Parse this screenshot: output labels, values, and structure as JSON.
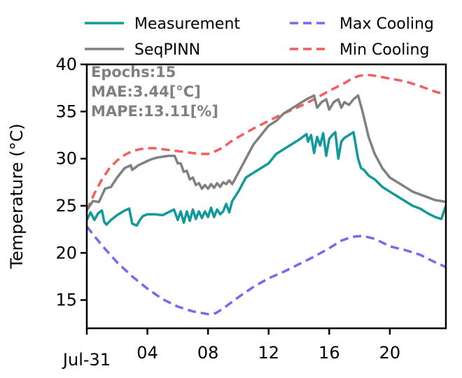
{
  "chart_data": {
    "type": "line",
    "title": "",
    "xlabel": "",
    "ylabel": "Temperature (°C)",
    "xlim": [
      0,
      23.7
    ],
    "ylim": [
      12,
      40
    ],
    "yticks": [
      15,
      20,
      25,
      30,
      35,
      40
    ],
    "xticks": [
      {
        "value": 0,
        "label": "Jul-31"
      },
      {
        "value": 4,
        "label": "04"
      },
      {
        "value": 8,
        "label": "08"
      },
      {
        "value": 12,
        "label": "12"
      },
      {
        "value": 16,
        "label": "16"
      },
      {
        "value": 20,
        "label": "20"
      }
    ],
    "grid": false,
    "legend_position": "top",
    "annotation": [
      "Epochs:15",
      "MAE:3.44[°C]",
      "MAPE:13.11[%]"
    ],
    "series": [
      {
        "name": "Measurement",
        "color": "#12999a",
        "dash": "solid",
        "x": [
          0,
          0.25,
          0.5,
          0.75,
          1.0,
          1.15,
          1.3,
          1.6,
          2.0,
          2.3,
          2.5,
          2.8,
          3.0,
          3.3,
          3.5,
          3.7,
          4.0,
          4.5,
          5.0,
          5.5,
          5.75,
          6.0,
          6.2,
          6.4,
          6.6,
          6.8,
          7.0,
          7.2,
          7.4,
          7.6,
          7.8,
          8.0,
          8.2,
          8.4,
          8.6,
          8.8,
          9.0,
          9.2,
          9.4,
          9.6,
          10.0,
          10.5,
          11.0,
          11.5,
          12.0,
          12.5,
          13.0,
          13.5,
          14.0,
          14.5,
          14.6,
          14.8,
          15.0,
          15.2,
          15.4,
          15.6,
          15.8,
          16.0,
          16.2,
          16.4,
          16.6,
          16.8,
          17.0,
          17.3,
          17.6,
          17.9,
          18.1,
          18.3,
          18.6,
          19.0,
          19.5,
          20.0,
          20.5,
          21.0,
          21.5,
          22.0,
          22.5,
          23.0,
          23.4,
          23.7
        ],
        "y": [
          23.5,
          24.3,
          23.5,
          24.2,
          24.5,
          23.3,
          23.0,
          23.5,
          24.0,
          24.3,
          24.5,
          24.7,
          23.1,
          22.9,
          23.5,
          23.9,
          24.1,
          24.1,
          24.0,
          24.4,
          24.6,
          23.5,
          24.4,
          23.2,
          24.4,
          23.4,
          24.6,
          23.6,
          24.4,
          23.7,
          24.4,
          23.8,
          24.8,
          23.8,
          24.6,
          24.1,
          24.4,
          25.2,
          24.3,
          25.5,
          26.5,
          28.0,
          28.5,
          29.0,
          29.5,
          30.5,
          31.0,
          31.5,
          32.0,
          32.6,
          31.8,
          32.5,
          30.6,
          32.3,
          31.4,
          32.7,
          30.3,
          32.1,
          32.5,
          32.8,
          30.0,
          31.8,
          32.2,
          32.5,
          32.8,
          30.0,
          29.0,
          28.8,
          28.2,
          27.8,
          27.0,
          26.5,
          26.0,
          25.5,
          25.0,
          24.7,
          24.2,
          23.8,
          23.6,
          25.0
        ]
      },
      {
        "name": "SeqPINN",
        "color": "#808080",
        "dash": "solid",
        "x": [
          0,
          0.4,
          0.8,
          1.2,
          1.6,
          2.0,
          2.5,
          2.9,
          3.0,
          3.4,
          3.8,
          4.2,
          4.6,
          5.0,
          5.4,
          5.8,
          6.0,
          6.2,
          6.4,
          6.6,
          6.8,
          7.0,
          7.2,
          7.4,
          7.6,
          7.8,
          8.0,
          8.2,
          8.4,
          8.6,
          8.8,
          9.0,
          9.2,
          9.4,
          9.6,
          10.0,
          10.5,
          11.0,
          11.5,
          12.0,
          12.5,
          13.0,
          13.5,
          14.0,
          14.5,
          15.0,
          15.2,
          15.5,
          15.8,
          16.0,
          16.3,
          16.6,
          16.8,
          17.0,
          17.3,
          17.6,
          17.9,
          18.2,
          18.6,
          19.0,
          19.5,
          20.0,
          20.5,
          21.0,
          21.5,
          22.0,
          22.5,
          23.0,
          23.4,
          23.7
        ],
        "y": [
          24.5,
          25.5,
          25.4,
          26.8,
          27.0,
          28.0,
          29.0,
          29.3,
          28.8,
          29.3,
          29.6,
          29.9,
          30.1,
          30.2,
          30.3,
          30.3,
          29.5,
          29.5,
          28.6,
          28.7,
          27.8,
          28.0,
          27.2,
          27.4,
          26.8,
          27.2,
          26.8,
          27.3,
          26.9,
          27.4,
          27.0,
          27.5,
          27.3,
          27.7,
          27.3,
          28.5,
          30.0,
          31.5,
          32.5,
          33.5,
          34.0,
          34.8,
          35.3,
          35.8,
          36.3,
          36.7,
          35.4,
          36.0,
          36.3,
          35.2,
          36.0,
          36.3,
          35.4,
          36.0,
          35.7,
          36.3,
          36.7,
          35.0,
          32.3,
          30.5,
          29.0,
          28.0,
          27.5,
          27.0,
          26.5,
          26.2,
          25.9,
          25.6,
          25.5,
          25.4
        ]
      },
      {
        "name": "Max Cooling",
        "color": "#7b68ee",
        "dash": "dashed",
        "x": [
          0,
          1,
          2,
          3,
          4,
          5,
          6,
          7,
          8,
          8.5,
          9,
          10,
          11,
          12,
          13,
          14,
          15,
          16,
          16.8,
          17.5,
          18.2,
          19,
          20,
          21,
          22,
          23,
          23.7
        ],
        "y": [
          22.8,
          20.8,
          19.0,
          17.5,
          16.2,
          15.1,
          14.3,
          13.8,
          13.5,
          13.6,
          14.1,
          15.3,
          16.4,
          17.3,
          18.0,
          18.8,
          19.6,
          20.5,
          21.3,
          21.7,
          21.8,
          21.5,
          20.7,
          20.3,
          19.8,
          19.0,
          18.5
        ]
      },
      {
        "name": "Min Cooling",
        "color": "#f25f5c",
        "dash": "dashed",
        "x": [
          0,
          0.5,
          1,
          1.5,
          2,
          2.5,
          3,
          3.5,
          4,
          4.5,
          5,
          5.5,
          6,
          6.5,
          7,
          7.5,
          8,
          8.5,
          9,
          9.5,
          10,
          11,
          12,
          13,
          14,
          15,
          16,
          17,
          17.5,
          18,
          18.5,
          19,
          20,
          21,
          22,
          23,
          23.7
        ],
        "y": [
          24.5,
          26.3,
          27.8,
          29.0,
          29.8,
          30.4,
          30.8,
          31.0,
          31.1,
          31.1,
          31.0,
          30.9,
          30.8,
          30.7,
          30.6,
          30.5,
          30.5,
          30.8,
          31.2,
          31.8,
          32.3,
          33.2,
          34.0,
          34.8,
          35.5,
          36.3,
          37.2,
          38.0,
          38.5,
          38.8,
          38.9,
          38.8,
          38.5,
          38.2,
          37.7,
          37.1,
          36.8
        ]
      }
    ]
  }
}
